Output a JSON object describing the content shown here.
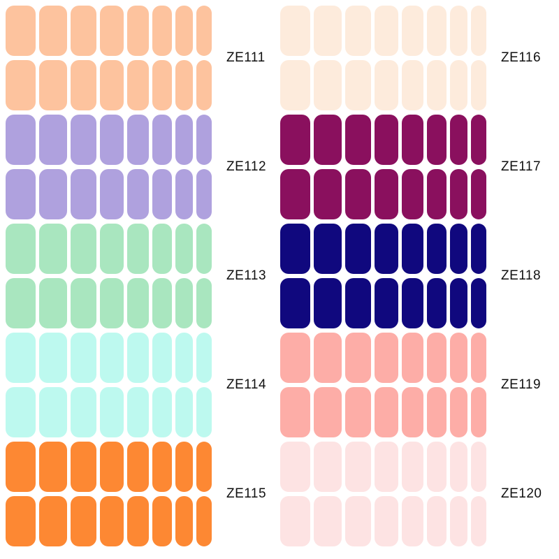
{
  "swatches": {
    "left": [
      {
        "code": "ZE111",
        "color": "#FDC39E"
      },
      {
        "code": "ZE112",
        "color": "#AFA1DE"
      },
      {
        "code": "ZE113",
        "color": "#A9E6BF"
      },
      {
        "code": "ZE114",
        "color": "#BDF9EF"
      },
      {
        "code": "ZE115",
        "color": "#FD8833"
      }
    ],
    "right": [
      {
        "code": "ZE116",
        "color": "#FDEBDC"
      },
      {
        "code": "ZE117",
        "color": "#8A105E"
      },
      {
        "code": "ZE118",
        "color": "#10087E"
      },
      {
        "code": "ZE119",
        "color": "#FDADA7"
      },
      {
        "code": "ZE120",
        "color": "#FDE3E3"
      }
    ]
  }
}
